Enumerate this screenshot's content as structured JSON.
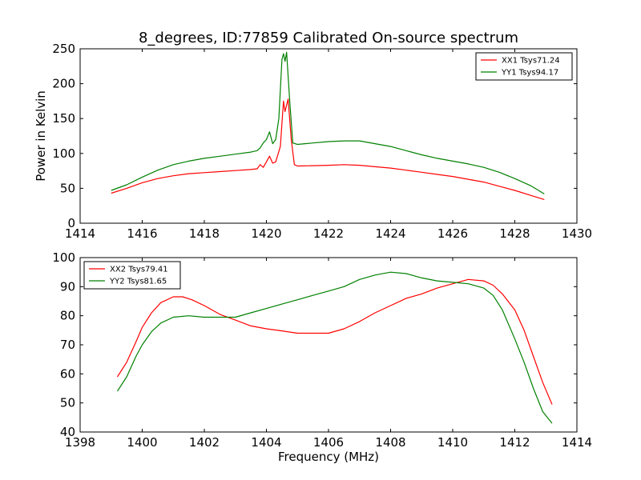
{
  "figure": {
    "title": "8_degrees, ID:77859 Calibrated On-source spectrum"
  },
  "chart_data": [
    {
      "type": "line",
      "ylabel": "Power in Kelvin",
      "xlabel": "",
      "xlim": [
        1414,
        1430
      ],
      "ylim": [
        0,
        250
      ],
      "xticks": [
        1414,
        1416,
        1418,
        1420,
        1422,
        1424,
        1426,
        1428,
        1430
      ],
      "yticks": [
        0,
        50,
        100,
        150,
        200,
        250
      ],
      "legend_position": "top-right",
      "series": [
        {
          "name": "XX1 Tsys71.24",
          "color": "#ff0000",
          "points": [
            [
              1415.0,
              43
            ],
            [
              1415.5,
              50
            ],
            [
              1416.0,
              58
            ],
            [
              1416.5,
              64
            ],
            [
              1417.0,
              68
            ],
            [
              1417.5,
              71
            ],
            [
              1418.0,
              72.5
            ],
            [
              1418.5,
              74
            ],
            [
              1419.0,
              75.5
            ],
            [
              1419.5,
              77
            ],
            [
              1419.7,
              78
            ],
            [
              1419.8,
              84
            ],
            [
              1419.9,
              80
            ],
            [
              1420.1,
              96
            ],
            [
              1420.2,
              86
            ],
            [
              1420.3,
              88
            ],
            [
              1420.45,
              110
            ],
            [
              1420.55,
              175
            ],
            [
              1420.6,
              160
            ],
            [
              1420.7,
              178
            ],
            [
              1420.8,
              120
            ],
            [
              1420.9,
              84
            ],
            [
              1421.0,
              82
            ],
            [
              1421.5,
              82.5
            ],
            [
              1422.0,
              83
            ],
            [
              1422.5,
              84
            ],
            [
              1423.0,
              83
            ],
            [
              1423.5,
              81
            ],
            [
              1424.0,
              79
            ],
            [
              1424.5,
              76
            ],
            [
              1425.0,
              73
            ],
            [
              1425.5,
              70
            ],
            [
              1426.0,
              67
            ],
            [
              1426.5,
              63
            ],
            [
              1427.0,
              59
            ],
            [
              1427.5,
              53
            ],
            [
              1428.0,
              47
            ],
            [
              1428.5,
              40
            ],
            [
              1428.95,
              34
            ]
          ]
        },
        {
          "name": "YY1 Tsys94.17",
          "color": "#008000",
          "points": [
            [
              1415.0,
              47
            ],
            [
              1415.5,
              55
            ],
            [
              1416.0,
              66
            ],
            [
              1416.5,
              76
            ],
            [
              1417.0,
              84
            ],
            [
              1417.5,
              89
            ],
            [
              1418.0,
              93
            ],
            [
              1418.5,
              96
            ],
            [
              1419.0,
              99
            ],
            [
              1419.5,
              102
            ],
            [
              1419.7,
              104
            ],
            [
              1419.8,
              108
            ],
            [
              1419.9,
              115
            ],
            [
              1420.0,
              120
            ],
            [
              1420.1,
              131
            ],
            [
              1420.2,
              114
            ],
            [
              1420.3,
              120
            ],
            [
              1420.4,
              150
            ],
            [
              1420.5,
              235
            ],
            [
              1420.55,
              243
            ],
            [
              1420.6,
              232
            ],
            [
              1420.65,
              245
            ],
            [
              1420.75,
              175
            ],
            [
              1420.85,
              115
            ],
            [
              1421.0,
              113
            ],
            [
              1421.5,
              115
            ],
            [
              1422.0,
              117
            ],
            [
              1422.5,
              118
            ],
            [
              1423.0,
              118
            ],
            [
              1423.5,
              114
            ],
            [
              1424.0,
              110
            ],
            [
              1424.5,
              104
            ],
            [
              1425.0,
              98
            ],
            [
              1425.5,
              93
            ],
            [
              1426.0,
              89
            ],
            [
              1426.5,
              85
            ],
            [
              1427.0,
              80
            ],
            [
              1427.5,
              73
            ],
            [
              1428.0,
              64
            ],
            [
              1428.5,
              54
            ],
            [
              1428.95,
              42
            ]
          ]
        }
      ]
    },
    {
      "type": "line",
      "xlabel": "Frequency (MHz)",
      "ylabel": "",
      "xlim": [
        1398,
        1414
      ],
      "ylim": [
        40,
        100
      ],
      "xticks": [
        1398,
        1400,
        1402,
        1404,
        1406,
        1408,
        1410,
        1412,
        1414
      ],
      "yticks": [
        40,
        50,
        60,
        70,
        80,
        90,
        100
      ],
      "legend_position": "top-left",
      "series": [
        {
          "name": "XX2 Tsys79.41",
          "color": "#ff0000",
          "points": [
            [
              1399.2,
              59
            ],
            [
              1399.5,
              64
            ],
            [
              1399.8,
              71
            ],
            [
              1400.0,
              76
            ],
            [
              1400.3,
              81
            ],
            [
              1400.6,
              84.5
            ],
            [
              1401.0,
              86.5
            ],
            [
              1401.3,
              86.5
            ],
            [
              1401.6,
              85.5
            ],
            [
              1402.0,
              83.5
            ],
            [
              1402.5,
              80.5
            ],
            [
              1403.0,
              78.5
            ],
            [
              1403.5,
              76.5
            ],
            [
              1404.0,
              75.5
            ],
            [
              1404.5,
              74.8
            ],
            [
              1405.0,
              74
            ],
            [
              1405.5,
              74
            ],
            [
              1406.0,
              74
            ],
            [
              1406.5,
              75.5
            ],
            [
              1407.0,
              78
            ],
            [
              1407.5,
              81
            ],
            [
              1408.0,
              83.5
            ],
            [
              1408.5,
              86
            ],
            [
              1409.0,
              87.5
            ],
            [
              1409.5,
              89.5
            ],
            [
              1410.0,
              91
            ],
            [
              1410.5,
              92.5
            ],
            [
              1411.0,
              92
            ],
            [
              1411.3,
              90.5
            ],
            [
              1411.6,
              87.5
            ],
            [
              1412.0,
              82
            ],
            [
              1412.3,
              75
            ],
            [
              1412.6,
              66
            ],
            [
              1412.9,
              57
            ],
            [
              1413.2,
              49.5
            ]
          ]
        },
        {
          "name": "YY2 Tsys81.65",
          "color": "#008000",
          "points": [
            [
              1399.2,
              54
            ],
            [
              1399.5,
              59
            ],
            [
              1399.8,
              66
            ],
            [
              1400.0,
              70
            ],
            [
              1400.3,
              74.5
            ],
            [
              1400.6,
              77.5
            ],
            [
              1401.0,
              79.5
            ],
            [
              1401.5,
              80
            ],
            [
              1402.0,
              79.5
            ],
            [
              1402.5,
              79.5
            ],
            [
              1403.0,
              79.5
            ],
            [
              1403.5,
              81
            ],
            [
              1404.0,
              82.5
            ],
            [
              1404.5,
              84
            ],
            [
              1405.0,
              85.5
            ],
            [
              1405.5,
              87
            ],
            [
              1406.0,
              88.5
            ],
            [
              1406.5,
              90
            ],
            [
              1407.0,
              92.5
            ],
            [
              1407.5,
              94
            ],
            [
              1408.0,
              95
            ],
            [
              1408.5,
              94.5
            ],
            [
              1409.0,
              93
            ],
            [
              1409.5,
              92
            ],
            [
              1410.0,
              91.5
            ],
            [
              1410.5,
              91
            ],
            [
              1411.0,
              89.5
            ],
            [
              1411.3,
              87
            ],
            [
              1411.6,
              82
            ],
            [
              1412.0,
              72
            ],
            [
              1412.3,
              64
            ],
            [
              1412.6,
              55
            ],
            [
              1412.9,
              47
            ],
            [
              1413.2,
              43
            ]
          ]
        }
      ]
    }
  ]
}
